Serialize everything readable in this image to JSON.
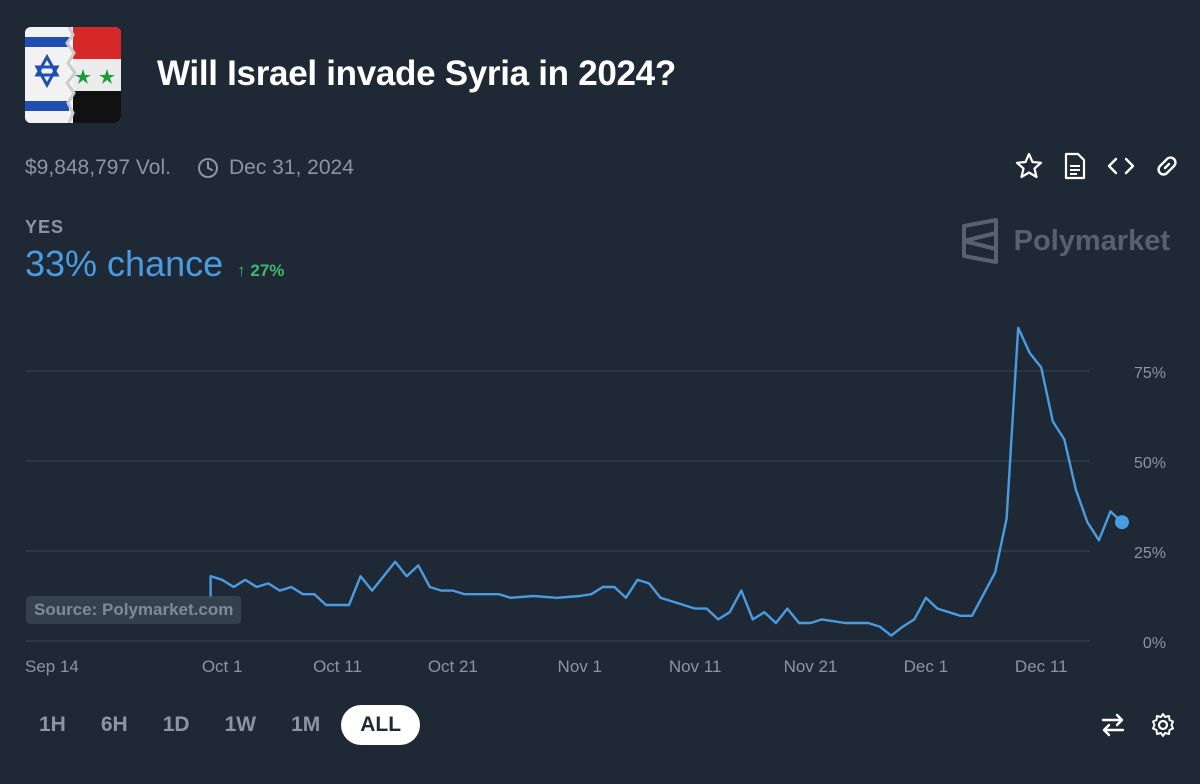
{
  "market": {
    "title": "Will Israel invade Syria in 2024?",
    "volume": "$9,848,797 Vol.",
    "end_date": "Dec 31, 2024",
    "outcome_label": "YES",
    "chance": "33% chance",
    "change": "↑ 27%",
    "brand": "Polymarket",
    "source": "Source: Polymarket.com"
  },
  "icons": {
    "clock": "clock-icon",
    "star": "star-icon",
    "document": "document-icon",
    "embed": "code-icon",
    "link": "link-icon",
    "swap": "swap-icon",
    "settings": "gear-icon"
  },
  "colors": {
    "background": "#1f2936",
    "line": "#4a9be0",
    "positive": "#3fb96e",
    "muted": "#8a96a3",
    "grid": "#3a4553"
  },
  "time_ranges": [
    {
      "label": "1H",
      "active": false
    },
    {
      "label": "6H",
      "active": false
    },
    {
      "label": "1D",
      "active": false
    },
    {
      "label": "1W",
      "active": false
    },
    {
      "label": "1M",
      "active": false
    },
    {
      "label": "ALL",
      "active": true
    }
  ],
  "chart_data": {
    "type": "line",
    "x_ticks": [
      "Sep 14",
      "Oct 1",
      "Oct 11",
      "Oct 21",
      "Nov 1",
      "Nov 11",
      "Nov 21",
      "Dec 1",
      "Dec 11"
    ],
    "y_ticks": [
      "0%",
      "25%",
      "50%",
      "75%"
    ],
    "ylim": [
      0,
      100
    ],
    "xlim": [
      "2024-09-14",
      "2024-12-18"
    ],
    "grid": true,
    "series": [
      {
        "values": [
          [
            "2024-09-30",
            12
          ],
          [
            "2024-09-30",
            18
          ],
          [
            "2024-10-01",
            17
          ],
          [
            "2024-10-02",
            15
          ],
          [
            "2024-10-03",
            17
          ],
          [
            "2024-10-04",
            15
          ],
          [
            "2024-10-05",
            16
          ],
          [
            "2024-10-06",
            14
          ],
          [
            "2024-10-07",
            15
          ],
          [
            "2024-10-08",
            13
          ],
          [
            "2024-10-09",
            13
          ],
          [
            "2024-10-10",
            10
          ],
          [
            "2024-10-11",
            10
          ],
          [
            "2024-10-12",
            10
          ],
          [
            "2024-10-13",
            18
          ],
          [
            "2024-10-14",
            14
          ],
          [
            "2024-10-15",
            18
          ],
          [
            "2024-10-16",
            22
          ],
          [
            "2024-10-17",
            18
          ],
          [
            "2024-10-18",
            21
          ],
          [
            "2024-10-19",
            15
          ],
          [
            "2024-10-20",
            14
          ],
          [
            "2024-10-21",
            14
          ],
          [
            "2024-10-22",
            13
          ],
          [
            "2024-10-25",
            13
          ],
          [
            "2024-10-26",
            12
          ],
          [
            "2024-10-28",
            12.5
          ],
          [
            "2024-10-30",
            12
          ],
          [
            "2024-11-01",
            12.5
          ],
          [
            "2024-11-02",
            13
          ],
          [
            "2024-11-03",
            15
          ],
          [
            "2024-11-04",
            15
          ],
          [
            "2024-11-05",
            12
          ],
          [
            "2024-11-06",
            17
          ],
          [
            "2024-11-07",
            16
          ],
          [
            "2024-11-08",
            12
          ],
          [
            "2024-11-09",
            11
          ],
          [
            "2024-11-10",
            10
          ],
          [
            "2024-11-11",
            9
          ],
          [
            "2024-11-12",
            9
          ],
          [
            "2024-11-13",
            6
          ],
          [
            "2024-11-14",
            8
          ],
          [
            "2024-11-15",
            14
          ],
          [
            "2024-11-16",
            6
          ],
          [
            "2024-11-17",
            8
          ],
          [
            "2024-11-18",
            5
          ],
          [
            "2024-11-19",
            9
          ],
          [
            "2024-11-20",
            5
          ],
          [
            "2024-11-21",
            5
          ],
          [
            "2024-11-22",
            6
          ],
          [
            "2024-11-24",
            5
          ],
          [
            "2024-11-26",
            5
          ],
          [
            "2024-11-27",
            4
          ],
          [
            "2024-11-28",
            1.5
          ],
          [
            "2024-11-29",
            4
          ],
          [
            "2024-11-30",
            6
          ],
          [
            "2024-12-01",
            12
          ],
          [
            "2024-12-02",
            9
          ],
          [
            "2024-12-03",
            8
          ],
          [
            "2024-12-04",
            7
          ],
          [
            "2024-12-05",
            7
          ],
          [
            "2024-12-06",
            13
          ],
          [
            "2024-12-07",
            19
          ],
          [
            "2024-12-08",
            34
          ],
          [
            "2024-12-09",
            87
          ],
          [
            "2024-12-10",
            80
          ],
          [
            "2024-12-11",
            76
          ],
          [
            "2024-12-12",
            61
          ],
          [
            "2024-12-13",
            56
          ],
          [
            "2024-12-14",
            42
          ],
          [
            "2024-12-15",
            33
          ],
          [
            "2024-12-16",
            28
          ],
          [
            "2024-12-17",
            36
          ],
          [
            "2024-12-18",
            33
          ]
        ]
      }
    ]
  }
}
